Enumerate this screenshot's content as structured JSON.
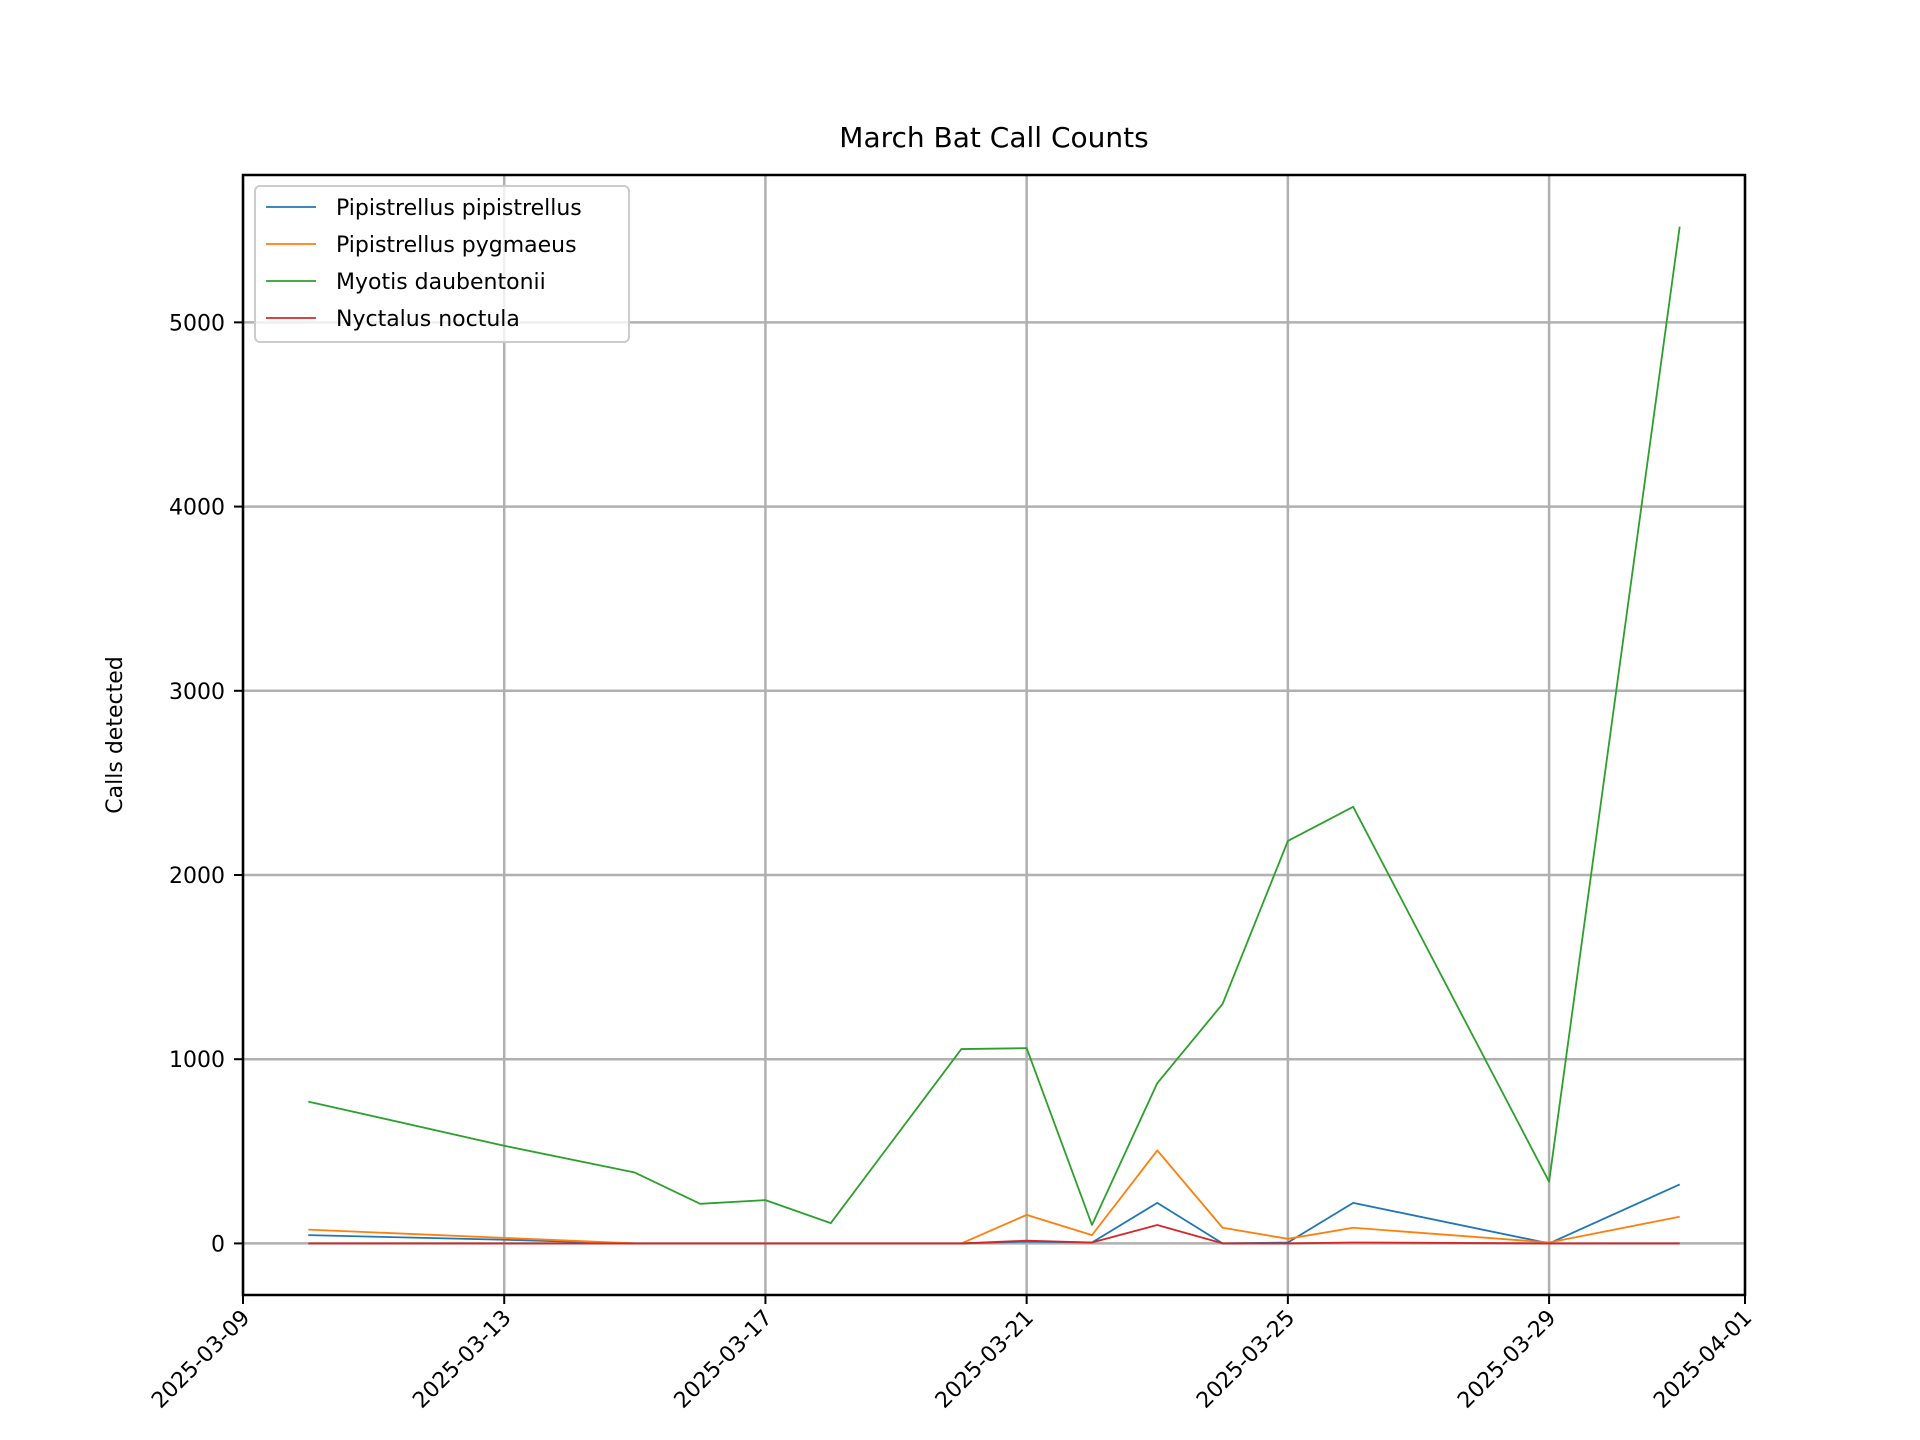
{
  "chart_data": {
    "type": "line",
    "title": "March Bat Call Counts",
    "xlabel": "",
    "ylabel": "Calls detected",
    "x": [
      "2025-03-10",
      "2025-03-13",
      "2025-03-15",
      "2025-03-16",
      "2025-03-17",
      "2025-03-18",
      "2025-03-20",
      "2025-03-21",
      "2025-03-22",
      "2025-03-23",
      "2025-03-24",
      "2025-03-25",
      "2025-03-26",
      "2025-03-29",
      "2025-03-31"
    ],
    "xlim": [
      "2025-03-09",
      "2025-04-01"
    ],
    "ylim": [
      -280,
      5800
    ],
    "xticks": [
      "2025-03-09",
      "2025-03-13",
      "2025-03-17",
      "2025-03-21",
      "2025-03-25",
      "2025-03-29",
      "2025-04-01"
    ],
    "yticks": [
      0,
      1000,
      2000,
      3000,
      4000,
      5000
    ],
    "grid": true,
    "legend_position": "upper left",
    "series": [
      {
        "name": "Pipistrellus pipistrellus",
        "color": "#1f77b4",
        "values": [
          45,
          20,
          0,
          0,
          0,
          0,
          0,
          10,
          5,
          220,
          0,
          5,
          220,
          0,
          320
        ]
      },
      {
        "name": "Pipistrellus pygmaeus",
        "color": "#ff7f0e",
        "values": [
          75,
          30,
          0,
          0,
          0,
          0,
          0,
          155,
          45,
          505,
          85,
          25,
          85,
          5,
          145
        ]
      },
      {
        "name": "Myotis daubentonii",
        "color": "#2ca02c",
        "values": [
          770,
          530,
          385,
          215,
          235,
          110,
          1055,
          1060,
          100,
          870,
          1300,
          2185,
          2370,
          335,
          5520
        ]
      },
      {
        "name": "Nyctalus noctula",
        "color": "#d62728",
        "values": [
          0,
          0,
          0,
          0,
          0,
          0,
          0,
          15,
          5,
          100,
          0,
          0,
          5,
          0,
          0
        ]
      }
    ]
  }
}
